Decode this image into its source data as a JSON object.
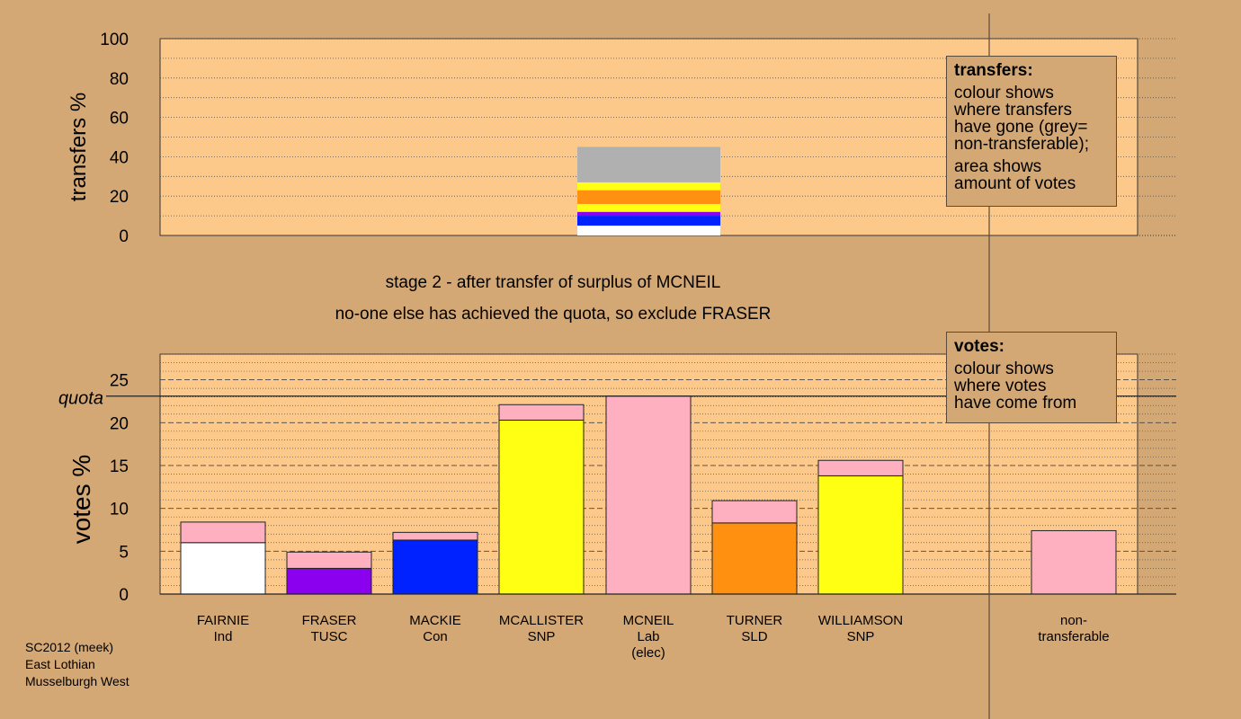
{
  "colors": {
    "background": "#d4a874",
    "plot_bg": "#fdc98a",
    "ind": "#ffffff",
    "tusc": "#8c00f0",
    "con": "#0022ff",
    "snp": "#ffff14",
    "lab": "#ffb0c0",
    "sld": "#ff9010",
    "nontransferable": "#b0b0b0"
  },
  "stage_title": "stage 2 - after transfer of surplus of MCNEIL",
  "stage_note": "no-one else has achieved the quota, so exclude FRASER",
  "transfers_box": {
    "heading": "transfers:",
    "lines": [
      "colour shows",
      "where transfers",
      "have gone (grey=",
      "non-transferable);"
    ],
    "lines2": [
      "area shows",
      "amount of votes"
    ]
  },
  "votes_box": {
    "heading": "votes:",
    "lines": [
      "colour shows",
      "where votes",
      "have come from"
    ]
  },
  "footer": {
    "line1": "SC2012 (meek)",
    "line2": "East Lothian",
    "line3": "Musselburgh West"
  },
  "chart_data": [
    {
      "type": "bar",
      "ylabel": "transfers %",
      "ylim": [
        0,
        100
      ],
      "yticks": [
        0,
        20,
        40,
        60,
        80,
        100
      ],
      "grid": "dotted",
      "stacked_segments": [
        {
          "color": "ind",
          "value": 5
        },
        {
          "color": "con",
          "value": 5
        },
        {
          "color": "tusc",
          "value": 2
        },
        {
          "color": "snp",
          "value": 4
        },
        {
          "color": "sld",
          "value": 7
        },
        {
          "color": "snp",
          "value": 4
        },
        {
          "color": "nontransferable",
          "value": 18
        }
      ]
    },
    {
      "type": "bar",
      "ylabel": "votes %",
      "ylim": [
        0,
        28
      ],
      "yticks": [
        0,
        5,
        10,
        15,
        20,
        25
      ],
      "quota": 23.1,
      "quota_label": "quota",
      "grid": "dashed",
      "categories": [
        {
          "name": "FAIRNIE",
          "party": "Ind",
          "extra": ""
        },
        {
          "name": "FRASER",
          "party": "TUSC",
          "extra": ""
        },
        {
          "name": "MACKIE",
          "party": "Con",
          "extra": ""
        },
        {
          "name": "MCALLISTER",
          "party": "SNP",
          "extra": ""
        },
        {
          "name": "MCNEIL",
          "party": "Lab",
          "extra": "(elec)"
        },
        {
          "name": "TURNER",
          "party": "SLD",
          "extra": ""
        },
        {
          "name": "WILLIAMSON",
          "party": "SNP",
          "extra": ""
        },
        {
          "name": "non-",
          "party": "transferable",
          "extra": ""
        }
      ],
      "series": [
        {
          "values": [
            6.0,
            3.0,
            6.3,
            20.3,
            0,
            8.3,
            13.8,
            0
          ],
          "colors": [
            "ind",
            "tusc",
            "con",
            "snp",
            "lab",
            "sld",
            "snp",
            "lab"
          ]
        },
        {
          "values": [
            2.4,
            1.9,
            0.9,
            1.8,
            23.1,
            2.6,
            1.8,
            7.4
          ],
          "colors": [
            "lab",
            "lab",
            "lab",
            "lab",
            "lab",
            "lab",
            "lab",
            "lab"
          ]
        }
      ]
    }
  ]
}
